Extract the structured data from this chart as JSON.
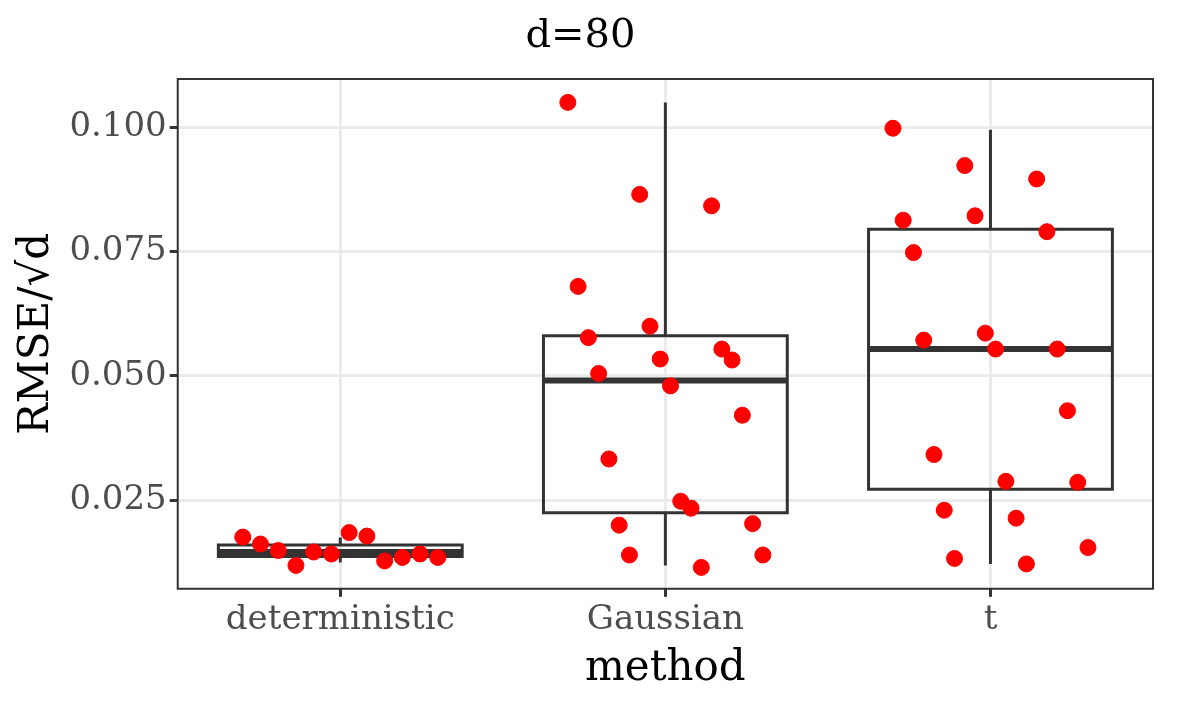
{
  "chart_data": {
    "type": "box",
    "title": "d=80",
    "xlabel": "method",
    "ylabel": "RMSE/√d",
    "categories": [
      "deterministic",
      "Gaussian",
      "t"
    ],
    "ylim": [
      0.0072,
      0.1097
    ],
    "yticks": [
      {
        "value": 0.025,
        "label": "0.025"
      },
      {
        "value": 0.05,
        "label": "0.050"
      },
      {
        "value": 0.075,
        "label": "0.075"
      },
      {
        "value": 0.1,
        "label": "0.100"
      }
    ],
    "grid": true,
    "legend": false,
    "marker": "circle",
    "series": [
      {
        "color": "#333333",
        "boxes": [
          {
            "low": 0.0125,
            "q1": 0.0137,
            "median": 0.0146,
            "q3": 0.016,
            "high": 0.0175
          },
          {
            "low": 0.0119,
            "q1": 0.0225,
            "median": 0.0491,
            "q3": 0.0581,
            "high": 0.105
          },
          {
            "low": 0.0122,
            "q1": 0.0272,
            "median": 0.0554,
            "q3": 0.0795,
            "high": 0.0995
          }
        ]
      },
      {
        "type": "scatter",
        "color": "#ff0000",
        "x": [
          "deterministic",
          "deterministic",
          "deterministic",
          "deterministic",
          "deterministic",
          "deterministic",
          "deterministic",
          "deterministic",
          "deterministic",
          "deterministic",
          "deterministic",
          "deterministic",
          "Gaussian",
          "Gaussian",
          "Gaussian",
          "Gaussian",
          "Gaussian",
          "Gaussian",
          "Gaussian",
          "Gaussian",
          "Gaussian",
          "Gaussian",
          "Gaussian",
          "Gaussian",
          "Gaussian",
          "Gaussian",
          "Gaussian",
          "Gaussian",
          "Gaussian",
          "Gaussian",
          "Gaussian",
          "Gaussian",
          "t",
          "t",
          "t",
          "t",
          "t",
          "t",
          "t",
          "t",
          "t",
          "t",
          "t",
          "t",
          "t",
          "t",
          "t",
          "t",
          "t",
          "t",
          "t",
          "t"
        ],
        "values": [
          0.0176,
          0.0178,
          0.0149,
          0.0135,
          0.0146,
          0.0135,
          0.0185,
          0.0162,
          0.0128,
          0.0119,
          0.0142,
          0.0142,
          0.105,
          0.0865,
          0.0842,
          0.068,
          0.06,
          0.0554,
          0.0577,
          0.0534,
          0.0532,
          0.0505,
          0.048,
          0.0421,
          0.0333,
          0.0248,
          0.0203,
          0.02,
          0.0234,
          0.014,
          0.014,
          0.0115,
          0.0998,
          0.0923,
          0.0896,
          0.0813,
          0.0822,
          0.079,
          0.0748,
          0.0586,
          0.0554,
          0.0572,
          0.0554,
          0.043,
          0.0342,
          0.0288,
          0.0286,
          0.023,
          0.0214,
          0.0155,
          0.0133,
          0.0122
        ]
      }
    ]
  }
}
